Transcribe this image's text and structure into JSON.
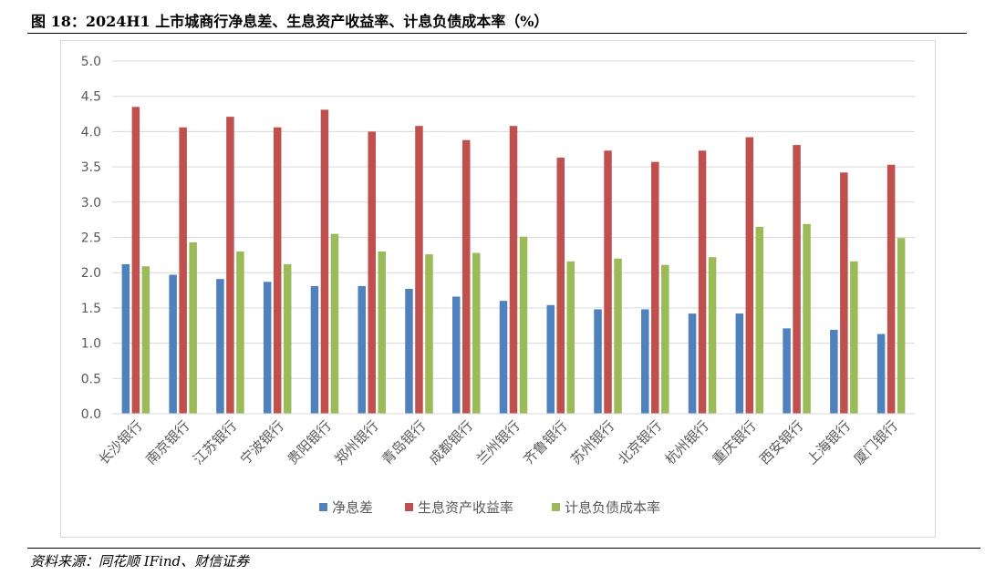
{
  "figure": {
    "title": "图 18：2024H1 上市城商行净息差、生息资产收益率、计息负债成本率（%）",
    "source": "资料来源：同花顺 IFind、财信证券"
  },
  "colors": {
    "series": [
      "#4f81bd",
      "#c0504d",
      "#9bbb59"
    ],
    "grid": "#d9d9d9",
    "axis_text": "#595959"
  },
  "chart_data": {
    "type": "bar",
    "categories": [
      "长沙银行",
      "南京银行",
      "江苏银行",
      "宁波银行",
      "贵阳银行",
      "郑州银行",
      "青岛银行",
      "成都银行",
      "兰州银行",
      "齐鲁银行",
      "苏州银行",
      "北京银行",
      "杭州银行",
      "重庆银行",
      "西安银行",
      "上海银行",
      "厦门银行"
    ],
    "series": [
      {
        "name": "净息差",
        "values": [
          2.12,
          1.97,
          1.91,
          1.87,
          1.81,
          1.81,
          1.77,
          1.66,
          1.6,
          1.54,
          1.48,
          1.48,
          1.42,
          1.42,
          1.21,
          1.19,
          1.13
        ]
      },
      {
        "name": "生息资产收益率",
        "values": [
          4.35,
          4.06,
          4.21,
          4.06,
          4.31,
          4.0,
          4.08,
          3.88,
          4.08,
          3.63,
          3.73,
          3.57,
          3.73,
          3.92,
          3.81,
          3.42,
          3.53
        ]
      },
      {
        "name": "计息负债成本率",
        "values": [
          2.09,
          2.43,
          2.3,
          2.12,
          2.55,
          2.3,
          2.26,
          2.28,
          2.51,
          2.16,
          2.2,
          2.11,
          2.22,
          2.65,
          2.69,
          2.16,
          2.49
        ]
      }
    ],
    "y_ticks": [
      "0.0",
      "0.5",
      "1.0",
      "1.5",
      "2.0",
      "2.5",
      "3.0",
      "3.5",
      "4.0",
      "4.5",
      "5.0"
    ],
    "ylim": [
      0,
      5
    ],
    "grid": true,
    "legend": "bottom"
  }
}
